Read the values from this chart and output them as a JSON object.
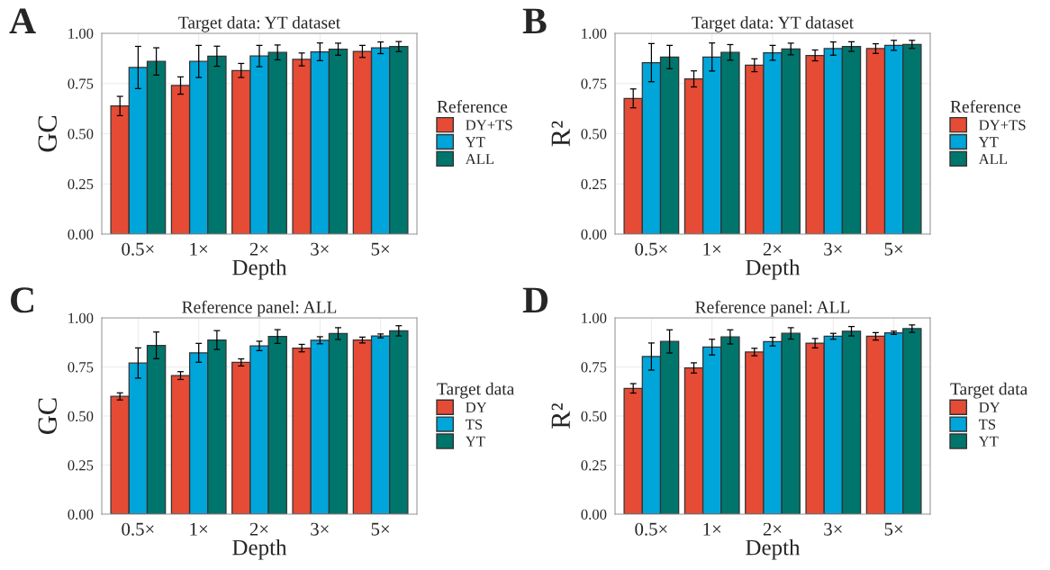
{
  "chart_data": [
    {
      "type": "bar",
      "title": "Target data: YT dataset",
      "xlabel": "Depth",
      "ylabel": "GC",
      "legend_title": "Reference",
      "legend": "right",
      "grid": true,
      "annotations": [
        "A"
      ],
      "categories": [
        "0.5×",
        "1×",
        "2×",
        "3×",
        "5×"
      ],
      "ylim": [
        0,
        1
      ],
      "yticks": [
        {
          "value": 0,
          "label": "0.00"
        },
        {
          "value": 0.25,
          "label": "0.25"
        },
        {
          "value": 0.5,
          "label": "0.50"
        },
        {
          "value": 0.75,
          "label": "0.75"
        },
        {
          "value": 1,
          "label": "1.00"
        }
      ],
      "series": [
        {
          "name": "DY+TS",
          "color": "#e64b35",
          "values": [
            0.638,
            0.74,
            0.815,
            0.87,
            0.91
          ],
          "errors": [
            0.048,
            0.043,
            0.035,
            0.032,
            0.03
          ]
        },
        {
          "name": "YT",
          "color": "#00a5d9",
          "values": [
            0.83,
            0.86,
            0.887,
            0.908,
            0.928
          ],
          "errors": [
            0.105,
            0.08,
            0.053,
            0.044,
            0.029
          ]
        },
        {
          "name": "ALL",
          "color": "#00756c",
          "values": [
            0.86,
            0.886,
            0.905,
            0.921,
            0.934
          ],
          "errors": [
            0.068,
            0.05,
            0.037,
            0.03,
            0.025
          ]
        }
      ]
    },
    {
      "type": "bar",
      "title": "Target data: YT dataset",
      "xlabel": "Depth",
      "ylabel": "R²",
      "legend_title": "Reference",
      "legend": "right",
      "grid": true,
      "annotations": [
        "B"
      ],
      "categories": [
        "0.5×",
        "1×",
        "2×",
        "3×",
        "5×"
      ],
      "ylim": [
        0,
        1
      ],
      "yticks": [
        {
          "value": 0,
          "label": "0.00"
        },
        {
          "value": 0.25,
          "label": "0.25"
        },
        {
          "value": 0.5,
          "label": "0.50"
        },
        {
          "value": 0.75,
          "label": "0.75"
        },
        {
          "value": 1,
          "label": "1.00"
        }
      ],
      "series": [
        {
          "name": "DY+TS",
          "color": "#e64b35",
          "values": [
            0.676,
            0.773,
            0.841,
            0.89,
            0.924
          ],
          "errors": [
            0.047,
            0.04,
            0.032,
            0.027,
            0.024
          ]
        },
        {
          "name": "YT",
          "color": "#00a5d9",
          "values": [
            0.854,
            0.882,
            0.903,
            0.924,
            0.94
          ],
          "errors": [
            0.095,
            0.07,
            0.037,
            0.033,
            0.025
          ]
        },
        {
          "name": "ALL",
          "color": "#00756c",
          "values": [
            0.882,
            0.905,
            0.922,
            0.934,
            0.945
          ],
          "errors": [
            0.058,
            0.039,
            0.029,
            0.024,
            0.02
          ]
        }
      ]
    },
    {
      "type": "bar",
      "title": "Reference panel: ALL",
      "xlabel": "Depth",
      "ylabel": "GC",
      "legend_title": "Target data",
      "legend": "right",
      "grid": true,
      "annotations": [
        "C"
      ],
      "categories": [
        "0.5×",
        "1×",
        "2×",
        "3×",
        "5×"
      ],
      "ylim": [
        0,
        1
      ],
      "yticks": [
        {
          "value": 0,
          "label": "0.00"
        },
        {
          "value": 0.25,
          "label": "0.25"
        },
        {
          "value": 0.5,
          "label": "0.50"
        },
        {
          "value": 0.75,
          "label": "0.75"
        },
        {
          "value": 1,
          "label": "1.00"
        }
      ],
      "series": [
        {
          "name": "DY",
          "color": "#e64b35",
          "values": [
            0.6,
            0.706,
            0.773,
            0.846,
            0.887
          ],
          "errors": [
            0.018,
            0.02,
            0.018,
            0.019,
            0.015
          ]
        },
        {
          "name": "TS",
          "color": "#00a5d9",
          "values": [
            0.77,
            0.822,
            0.857,
            0.886,
            0.908
          ],
          "errors": [
            0.077,
            0.048,
            0.024,
            0.018,
            0.01
          ]
        },
        {
          "name": "YT",
          "color": "#00756c",
          "values": [
            0.86,
            0.887,
            0.905,
            0.92,
            0.934
          ],
          "errors": [
            0.068,
            0.048,
            0.035,
            0.03,
            0.026
          ]
        }
      ]
    },
    {
      "type": "bar",
      "title": "Reference panel: ALL",
      "xlabel": "Depth",
      "ylabel": "R²",
      "legend_title": "Target data",
      "legend": "right",
      "grid": true,
      "annotations": [
        "D"
      ],
      "categories": [
        "0.5×",
        "1×",
        "2×",
        "3×",
        "5×"
      ],
      "ylim": [
        0,
        1
      ],
      "yticks": [
        {
          "value": 0,
          "label": "0.00"
        },
        {
          "value": 0.25,
          "label": "0.25"
        },
        {
          "value": 0.5,
          "label": "0.50"
        },
        {
          "value": 0.75,
          "label": "0.75"
        },
        {
          "value": 1,
          "label": "1.00"
        }
      ],
      "series": [
        {
          "name": "DY",
          "color": "#e64b35",
          "values": [
            0.641,
            0.745,
            0.826,
            0.871,
            0.906
          ],
          "errors": [
            0.024,
            0.026,
            0.019,
            0.024,
            0.019
          ]
        },
        {
          "name": "TS",
          "color": "#00a5d9",
          "values": [
            0.803,
            0.851,
            0.879,
            0.906,
            0.924
          ],
          "errors": [
            0.069,
            0.04,
            0.022,
            0.015,
            0.008
          ]
        },
        {
          "name": "YT",
          "color": "#00756c",
          "values": [
            0.88,
            0.903,
            0.921,
            0.932,
            0.945
          ],
          "errors": [
            0.059,
            0.036,
            0.029,
            0.024,
            0.019
          ]
        }
      ]
    }
  ]
}
